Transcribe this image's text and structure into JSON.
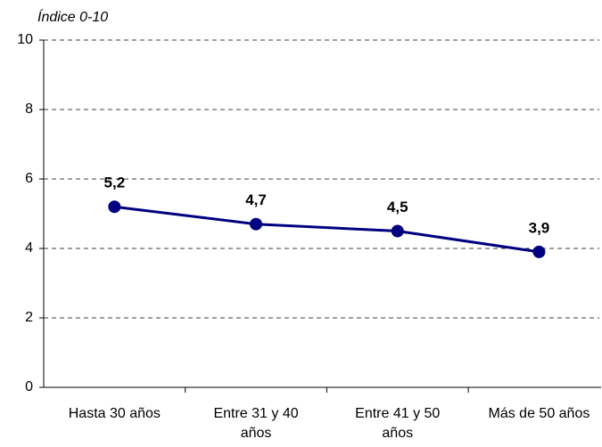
{
  "chart_data": {
    "type": "line",
    "y_axis_label": "Índice 0-10",
    "categories": [
      "Hasta 30 años",
      "Entre 31 y 40 años",
      "Entre 41 y 50 años",
      "Más de 50 años"
    ],
    "series": [
      {
        "name": "Índice",
        "color": "#000080",
        "values": [
          5.2,
          4.7,
          4.5,
          3.9
        ],
        "value_labels": [
          "5,2",
          "4,7",
          "4,5",
          "3,9"
        ]
      }
    ],
    "ylim": [
      0,
      10
    ],
    "yticks": [
      0,
      2,
      4,
      6,
      8,
      10
    ],
    "grid": true
  }
}
